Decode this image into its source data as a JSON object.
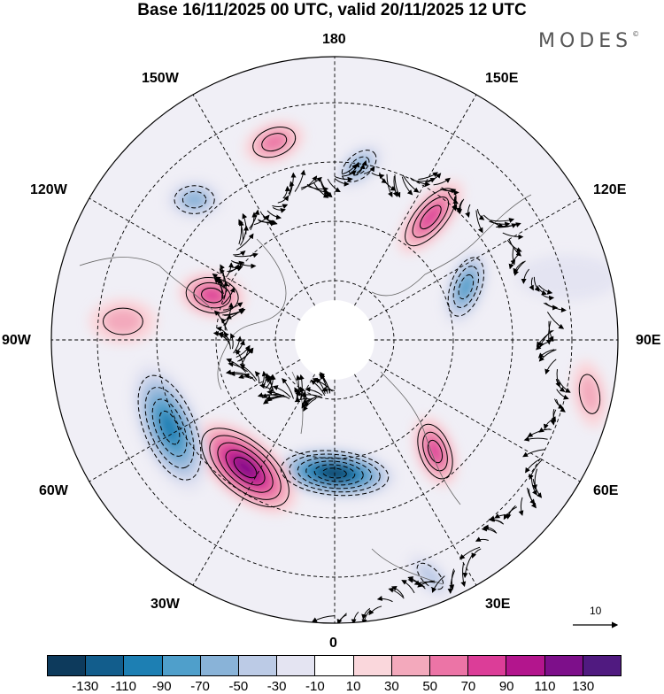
{
  "title": "Base 16/11/2025 00 UTC, valid 20/11/2025 12 UTC",
  "logo": "MODES",
  "logo_mark": "©",
  "longitude_labels": {
    "top": "180",
    "bottom": "0",
    "left": "90W",
    "right": "90E",
    "upper_left_1": "150W",
    "upper_left_2": "120W",
    "upper_right_1": "150E",
    "upper_right_2": "120E",
    "lower_left_1": "60W",
    "lower_left_2": "30W",
    "lower_right_1": "60E",
    "lower_right_2": "30E"
  },
  "wind_scale_label": "10",
  "colorbar": {
    "colors": [
      "#0d3a5c",
      "#125d8c",
      "#1d7fb3",
      "#4f9fcb",
      "#89b3d8",
      "#bccbe6",
      "#e4e4f2",
      "#ffffff",
      "#fad7dc",
      "#f3a9bc",
      "#ec74a6",
      "#dc3d98",
      "#b3158d",
      "#7d0f8a",
      "#501a80"
    ],
    "ticks": [
      "-130",
      "-110",
      "-90",
      "-70",
      "-50",
      "-30",
      "-10",
      "10",
      "30",
      "50",
      "70",
      "90",
      "110",
      "130"
    ]
  },
  "anomaly_cells": [
    {
      "lon": 0,
      "colat_frac": 0.47,
      "value": -130,
      "major_frac": 0.22,
      "minor_frac": 0.09,
      "tilt": 5
    },
    {
      "lon": -35,
      "colat_frac": 0.55,
      "value": 125,
      "major_frac": 0.22,
      "minor_frac": 0.11,
      "tilt": 40
    },
    {
      "lon": -62,
      "colat_frac": 0.66,
      "value": -100,
      "major_frac": 0.24,
      "minor_frac": 0.11,
      "tilt": 68
    },
    {
      "lon": -95,
      "colat_frac": 0.75,
      "value": 45,
      "major_frac": 0.12,
      "minor_frac": 0.08,
      "tilt": 0
    },
    {
      "lon": -110,
      "colat_frac": 0.46,
      "value": 70,
      "major_frac": 0.12,
      "minor_frac": 0.08,
      "tilt": 10
    },
    {
      "lon": -135,
      "colat_frac": 0.7,
      "value": -50,
      "major_frac": 0.1,
      "minor_frac": 0.07,
      "tilt": 0
    },
    {
      "lon": -163,
      "colat_frac": 0.73,
      "value": 50,
      "major_frac": 0.11,
      "minor_frac": 0.07,
      "tilt": -20
    },
    {
      "lon": 172,
      "colat_frac": 0.62,
      "value": -50,
      "major_frac": 0.1,
      "minor_frac": 0.06,
      "tilt": -40
    },
    {
      "lon": 142,
      "colat_frac": 0.55,
      "value": 85,
      "major_frac": 0.16,
      "minor_frac": 0.07,
      "tilt": -50
    },
    {
      "lon": 112,
      "colat_frac": 0.5,
      "value": -80,
      "major_frac": 0.14,
      "minor_frac": 0.07,
      "tilt": -70
    },
    {
      "lon": 42,
      "colat_frac": 0.53,
      "value": 70,
      "major_frac": 0.13,
      "minor_frac": 0.07,
      "tilt": 70
    },
    {
      "lon": 78,
      "colat_frac": 0.92,
      "value": 40,
      "major_frac": 0.12,
      "minor_frac": 0.06,
      "tilt": 80
    },
    {
      "lon": 22,
      "colat_frac": 0.9,
      "value": -40,
      "major_frac": 0.1,
      "minor_frac": 0.05,
      "tilt": 45
    },
    {
      "lon": 105,
      "colat_frac": 0.85,
      "value": -25,
      "major_frac": 0.18,
      "minor_frac": 0.08,
      "tilt": 0
    }
  ]
}
